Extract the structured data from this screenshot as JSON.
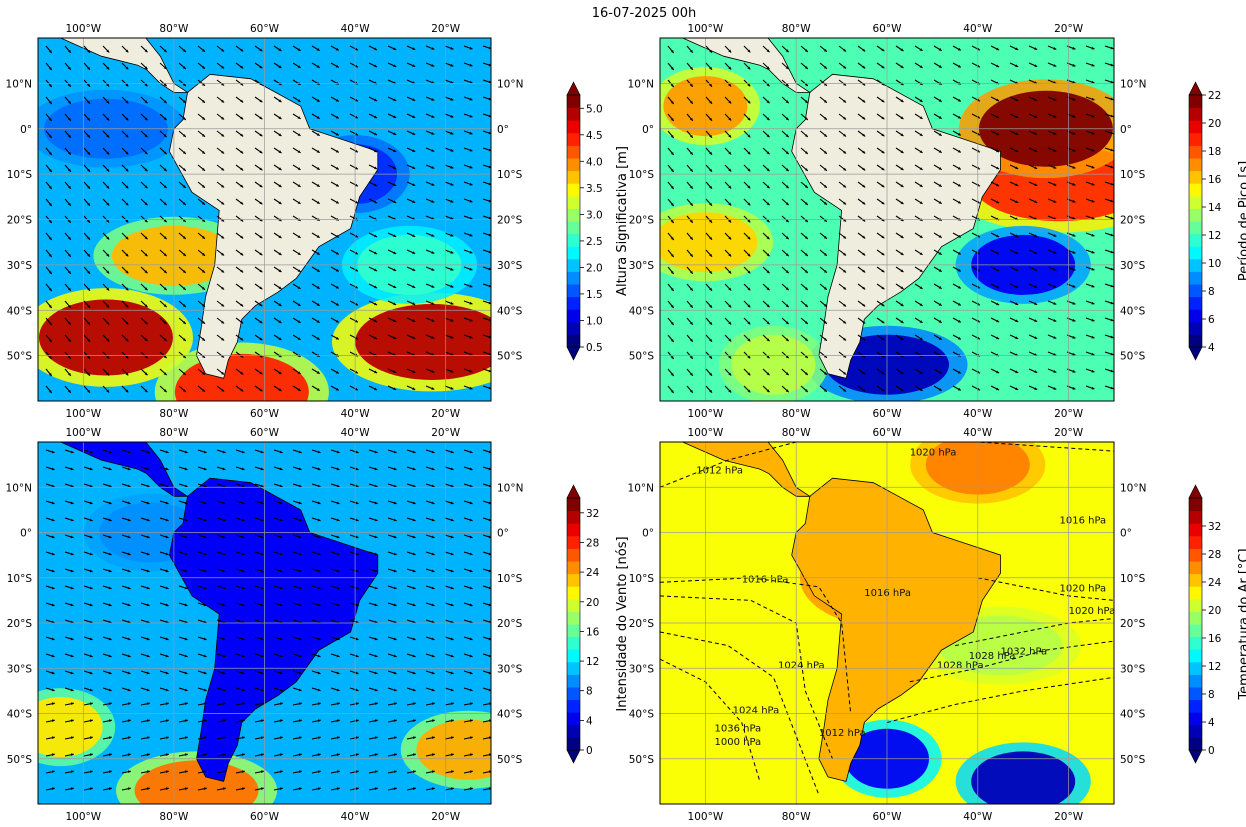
{
  "suptitle": "16-07-2025 00h",
  "lon_ticks": [
    "100°W",
    "80°W",
    "60°W",
    "40°W",
    "20°W"
  ],
  "lat_ticks": [
    "10°N",
    "0°",
    "10°S",
    "20°S",
    "30°S",
    "40°S",
    "50°S"
  ],
  "chart_data": [
    {
      "type": "heatmap",
      "variable": "Altura Significativa",
      "colorbar_label": "Altura Significativa [m]",
      "colorbar_ticks": [
        "0.5",
        "1.0",
        "1.5",
        "2.0",
        "2.5",
        "3.0",
        "3.5",
        "4.0",
        "4.5",
        "5.0"
      ],
      "colorbar_range": [
        0.5,
        5.25
      ],
      "colormap": "jet",
      "overlay": "wave direction arrows",
      "lon_range": [
        -110,
        -10
      ],
      "lat_range": [
        -60,
        20
      ],
      "features": [
        {
          "lon": -95,
          "lat": -46,
          "value": 5.0
        },
        {
          "lon": -23,
          "lat": -47,
          "value": 5.0
        },
        {
          "lon": -80,
          "lat": -28,
          "value": 3.8
        },
        {
          "lon": -65,
          "lat": -58,
          "value": 4.5
        },
        {
          "lon": -28,
          "lat": -30,
          "value": 2.5
        },
        {
          "lon": -95,
          "lat": 0,
          "value": 1.6
        },
        {
          "lon": -40,
          "lat": -10,
          "value": 1.3
        }
      ]
    },
    {
      "type": "heatmap",
      "variable": "Período de Pico",
      "colorbar_label": "Período de Pico [s]",
      "colorbar_ticks": [
        "4",
        "6",
        "8",
        "10",
        "12",
        "14",
        "16",
        "18",
        "20",
        "22"
      ],
      "colorbar_range": [
        4,
        22
      ],
      "colormap": "jet",
      "overlay": "wave direction arrows",
      "lon_range": [
        -110,
        -10
      ],
      "lat_range": [
        -60,
        20
      ],
      "features": [
        {
          "lon": -100,
          "lat": 5,
          "value": 17
        },
        {
          "lon": -100,
          "lat": -25,
          "value": 16
        },
        {
          "lon": -22,
          "lat": -12,
          "value": 19
        },
        {
          "lon": -25,
          "lat": 0,
          "value": 22
        },
        {
          "lon": -30,
          "lat": -30,
          "value": 6
        },
        {
          "lon": -60,
          "lat": -52,
          "value": 5
        },
        {
          "lon": -85,
          "lat": -52,
          "value": 14
        }
      ]
    },
    {
      "type": "heatmap",
      "variable": "Intensidade do Vento",
      "colorbar_label": "Intensidade do Vento [nós]",
      "colorbar_ticks": [
        "0",
        "4",
        "8",
        "12",
        "16",
        "20",
        "24",
        "28",
        "32"
      ],
      "colorbar_range": [
        0,
        34
      ],
      "colormap": "jet",
      "overlay": "wind arrows",
      "lon_range": [
        -110,
        -10
      ],
      "lat_range": [
        -60,
        20
      ],
      "features": [
        {
          "lon": -105,
          "lat": -43,
          "value": 22
        },
        {
          "lon": -15,
          "lat": -48,
          "value": 24
        },
        {
          "lon": -75,
          "lat": -57,
          "value": 26
        },
        {
          "lon": -40,
          "lat": -15,
          "value": 10
        },
        {
          "lon": -85,
          "lat": 0,
          "value": 9
        }
      ]
    },
    {
      "type": "heatmap",
      "variable": "Temperatura do Ar",
      "colorbar_label": "Temperatura do Ar [°C]",
      "colorbar_ticks": [
        "0",
        "4",
        "8",
        "12",
        "16",
        "20",
        "24",
        "28",
        "32"
      ],
      "colorbar_range": [
        0,
        36
      ],
      "colormap": "jet",
      "overlay": "isobars",
      "isobar_labels": [
        "1012 hPa",
        "1016 hPa",
        "1016 hPa",
        "1016 hPa",
        "1020 hPa",
        "1020 hPa",
        "1020 hPa",
        "1024 hPa",
        "1024 hPa",
        "1028 hPa",
        "1028 hPa",
        "1032 hPa",
        "1036 hPa",
        "1000 hPa",
        "1012 hPa"
      ],
      "lon_range": [
        -110,
        -10
      ],
      "lat_range": [
        -60,
        20
      ],
      "features": [
        {
          "lon": -60,
          "lat": -10,
          "value": 30
        },
        {
          "lon": -40,
          "lat": 15,
          "value": 27
        },
        {
          "lon": -35,
          "lat": -25,
          "value": 20
        },
        {
          "lon": -60,
          "lat": -50,
          "value": 4
        },
        {
          "lon": -30,
          "lat": -55,
          "value": 2
        }
      ]
    }
  ]
}
